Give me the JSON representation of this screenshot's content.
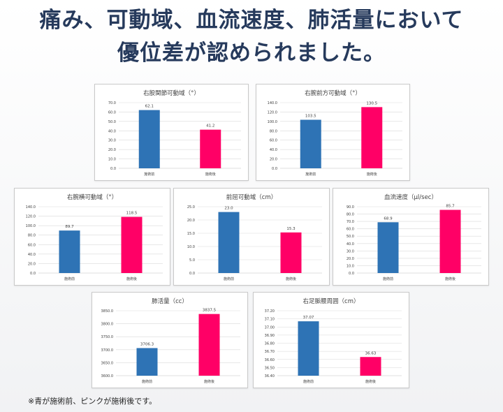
{
  "headline": {
    "line1": "痛み、可動域、血流速度、肺活量において",
    "line2": "優位差が認められました。"
  },
  "colors": {
    "before": "#2e73b5",
    "after": "#ff0066",
    "grid": "#d9d9d9",
    "text": "#404040"
  },
  "chart_data": [
    {
      "type": "bar",
      "title": "右股関節可動域（°）",
      "categories": [
        "施術前",
        "施術後"
      ],
      "values": [
        62.1,
        41.2
      ],
      "value_labels": [
        "62.1",
        "41.2"
      ],
      "ylim": [
        0,
        70
      ],
      "yticks": [
        "0.0",
        "10.0",
        "20.0",
        "30.0",
        "40.0",
        "50.0",
        "60.0",
        "70.0"
      ],
      "grid": true,
      "legend": "none"
    },
    {
      "type": "bar",
      "title": "右腕前方可動域（°）",
      "categories": [
        "施術前",
        "施術後"
      ],
      "values": [
        103.5,
        130.5
      ],
      "value_labels": [
        "103.5",
        "130.5"
      ],
      "ylim": [
        0,
        140
      ],
      "yticks": [
        "0.0",
        "20.0",
        "40.0",
        "60.0",
        "80.0",
        "100.0",
        "120.0",
        "140.0"
      ],
      "grid": true,
      "legend": "none"
    },
    {
      "type": "bar",
      "title": "右腕横可動域（°）",
      "categories": [
        "施術前",
        "施術後"
      ],
      "values": [
        89.7,
        118.5
      ],
      "value_labels": [
        "89.7",
        "118.5"
      ],
      "ylim": [
        0,
        140
      ],
      "yticks": [
        "0.0",
        "20.0",
        "40.0",
        "60.0",
        "80.0",
        "100.0",
        "120.0",
        "140.0"
      ],
      "grid": true,
      "legend": "none"
    },
    {
      "type": "bar",
      "title": "前屈可動域（cm）",
      "categories": [
        "施術前",
        "施術後"
      ],
      "values": [
        23.0,
        15.3
      ],
      "value_labels": [
        "23.0",
        "15.3"
      ],
      "ylim": [
        0,
        25
      ],
      "yticks": [
        "0.0",
        "5.0",
        "10.0",
        "15.0",
        "20.0",
        "25.0"
      ],
      "grid": true,
      "legend": "none"
    },
    {
      "type": "bar",
      "title": "血流速度（μl/sec）",
      "categories": [
        "施術前",
        "施術後"
      ],
      "values": [
        68.9,
        85.7
      ],
      "value_labels": [
        "68.9",
        "85.7"
      ],
      "ylim": [
        0,
        90
      ],
      "yticks": [
        "0.0",
        "10.0",
        "20.0",
        "30.0",
        "40.0",
        "50.0",
        "60.0",
        "70.0",
        "80.0",
        "90.0"
      ],
      "grid": true,
      "legend": "none"
    },
    {
      "type": "bar",
      "title": "肺活量（cc）",
      "categories": [
        "施術前",
        "施術後"
      ],
      "values": [
        3706.3,
        3837.5
      ],
      "value_labels": [
        "3706.3",
        "3837.5"
      ],
      "ylim": [
        3600,
        3850
      ],
      "yticks": [
        "3600.0",
        "3650.0",
        "3700.0",
        "3750.0",
        "3800.0",
        "3850.0"
      ],
      "grid": true,
      "legend": "none"
    },
    {
      "type": "bar",
      "title": "右足脈腰周囲（cm）",
      "categories": [
        "施術前",
        "施術後"
      ],
      "values": [
        37.07,
        36.63
      ],
      "value_labels": [
        "37.07",
        "36.63"
      ],
      "ylim": [
        36.4,
        37.2
      ],
      "yticks": [
        "36.40",
        "36.50",
        "36.60",
        "36.70",
        "36.80",
        "36.90",
        "37.00",
        "37.10",
        "37.20"
      ],
      "grid": true,
      "legend": "none"
    }
  ],
  "footnote": "※青が施術前、ピンクが施術後です。"
}
